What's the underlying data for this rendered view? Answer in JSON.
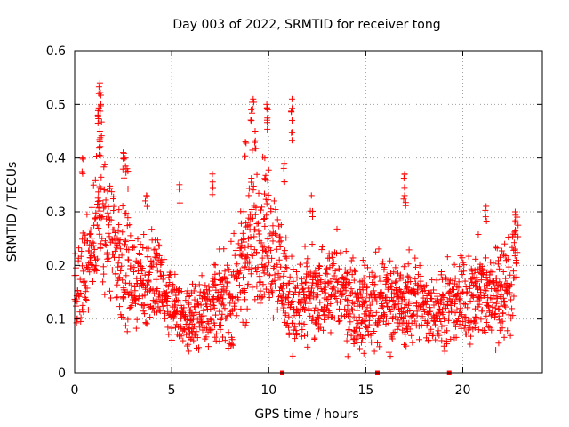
{
  "chart_data": {
    "type": "scatter",
    "title": "Day 003 of 2022, SRMTID for receiver tong",
    "xlabel": "GPS time / hours",
    "ylabel": "SRMTID / TECUs",
    "xlim": [
      0,
      24.1
    ],
    "ylim": [
      0,
      0.6
    ],
    "xticks": [
      "0",
      "5",
      "10",
      "15",
      "20"
    ],
    "xtick_values": [
      0,
      5,
      10,
      15,
      20
    ],
    "yticks": [
      "0",
      "0.1",
      "0.2",
      "0.3",
      "0.4",
      "0.5",
      "0.6"
    ],
    "ytick_values": [
      0,
      0.1,
      0.2,
      0.3,
      0.4,
      0.5,
      0.6
    ],
    "grid": true,
    "marker": "+",
    "series_color": "#ff0000",
    "zero_markers_x": [
      10.7,
      15.6,
      19.3
    ],
    "profile": {
      "x": [
        0,
        0.5,
        1.0,
        1.3,
        1.6,
        2.0,
        2.5,
        3.0,
        3.5,
        4.0,
        4.5,
        5.0,
        5.5,
        6.0,
        6.5,
        7.0,
        7.5,
        8.0,
        8.5,
        9.0,
        9.5,
        10.0,
        10.5,
        11.0,
        11.5,
        12.0,
        12.5,
        13.0,
        13.5,
        14.0,
        14.5,
        15.0,
        15.5,
        16.0,
        16.5,
        17.0,
        17.5,
        18.0,
        18.5,
        19.0,
        19.5,
        20.0,
        20.5,
        21.0,
        21.5,
        22.0,
        22.5,
        22.8
      ],
      "center": [
        0.15,
        0.2,
        0.25,
        0.28,
        0.27,
        0.25,
        0.2,
        0.16,
        0.17,
        0.19,
        0.16,
        0.12,
        0.11,
        0.1,
        0.11,
        0.14,
        0.13,
        0.14,
        0.18,
        0.25,
        0.27,
        0.26,
        0.2,
        0.14,
        0.12,
        0.13,
        0.14,
        0.15,
        0.16,
        0.14,
        0.13,
        0.12,
        0.13,
        0.14,
        0.13,
        0.13,
        0.14,
        0.12,
        0.12,
        0.13,
        0.12,
        0.14,
        0.14,
        0.15,
        0.15,
        0.16,
        0.17,
        0.2
      ],
      "spread": [
        0.07,
        0.08,
        0.08,
        0.1,
        0.09,
        0.09,
        0.08,
        0.06,
        0.06,
        0.07,
        0.06,
        0.05,
        0.05,
        0.05,
        0.05,
        0.07,
        0.06,
        0.06,
        0.08,
        0.1,
        0.11,
        0.1,
        0.08,
        0.06,
        0.06,
        0.06,
        0.06,
        0.06,
        0.07,
        0.06,
        0.06,
        0.06,
        0.06,
        0.06,
        0.06,
        0.06,
        0.06,
        0.05,
        0.05,
        0.06,
        0.05,
        0.06,
        0.06,
        0.06,
        0.06,
        0.07,
        0.07,
        0.08
      ]
    },
    "highlights": [
      {
        "x": 1.3,
        "y": 0.54
      },
      {
        "x": 1.25,
        "y": 0.52
      },
      {
        "x": 1.35,
        "y": 0.5
      },
      {
        "x": 1.2,
        "y": 0.48
      },
      {
        "x": 1.3,
        "y": 0.45
      },
      {
        "x": 1.3,
        "y": 0.43
      },
      {
        "x": 0.4,
        "y": 0.4
      },
      {
        "x": 2.5,
        "y": 0.41
      },
      {
        "x": 2.6,
        "y": 0.4
      },
      {
        "x": 2.7,
        "y": 0.38
      },
      {
        "x": 3.7,
        "y": 0.33
      },
      {
        "x": 5.4,
        "y": 0.35
      },
      {
        "x": 7.1,
        "y": 0.37
      },
      {
        "x": 8.8,
        "y": 0.43
      },
      {
        "x": 9.1,
        "y": 0.49
      },
      {
        "x": 9.2,
        "y": 0.51
      },
      {
        "x": 9.3,
        "y": 0.45
      },
      {
        "x": 9.9,
        "y": 0.5
      },
      {
        "x": 9.95,
        "y": 0.49
      },
      {
        "x": 9.8,
        "y": 0.4
      },
      {
        "x": 10.8,
        "y": 0.39
      },
      {
        "x": 11.2,
        "y": 0.51
      },
      {
        "x": 11.2,
        "y": 0.47
      },
      {
        "x": 12.2,
        "y": 0.33
      },
      {
        "x": 17.0,
        "y": 0.37
      },
      {
        "x": 17.0,
        "y": 0.33
      },
      {
        "x": 21.2,
        "y": 0.31
      },
      {
        "x": 22.7,
        "y": 0.3
      },
      {
        "x": 22.8,
        "y": 0.29
      }
    ]
  }
}
